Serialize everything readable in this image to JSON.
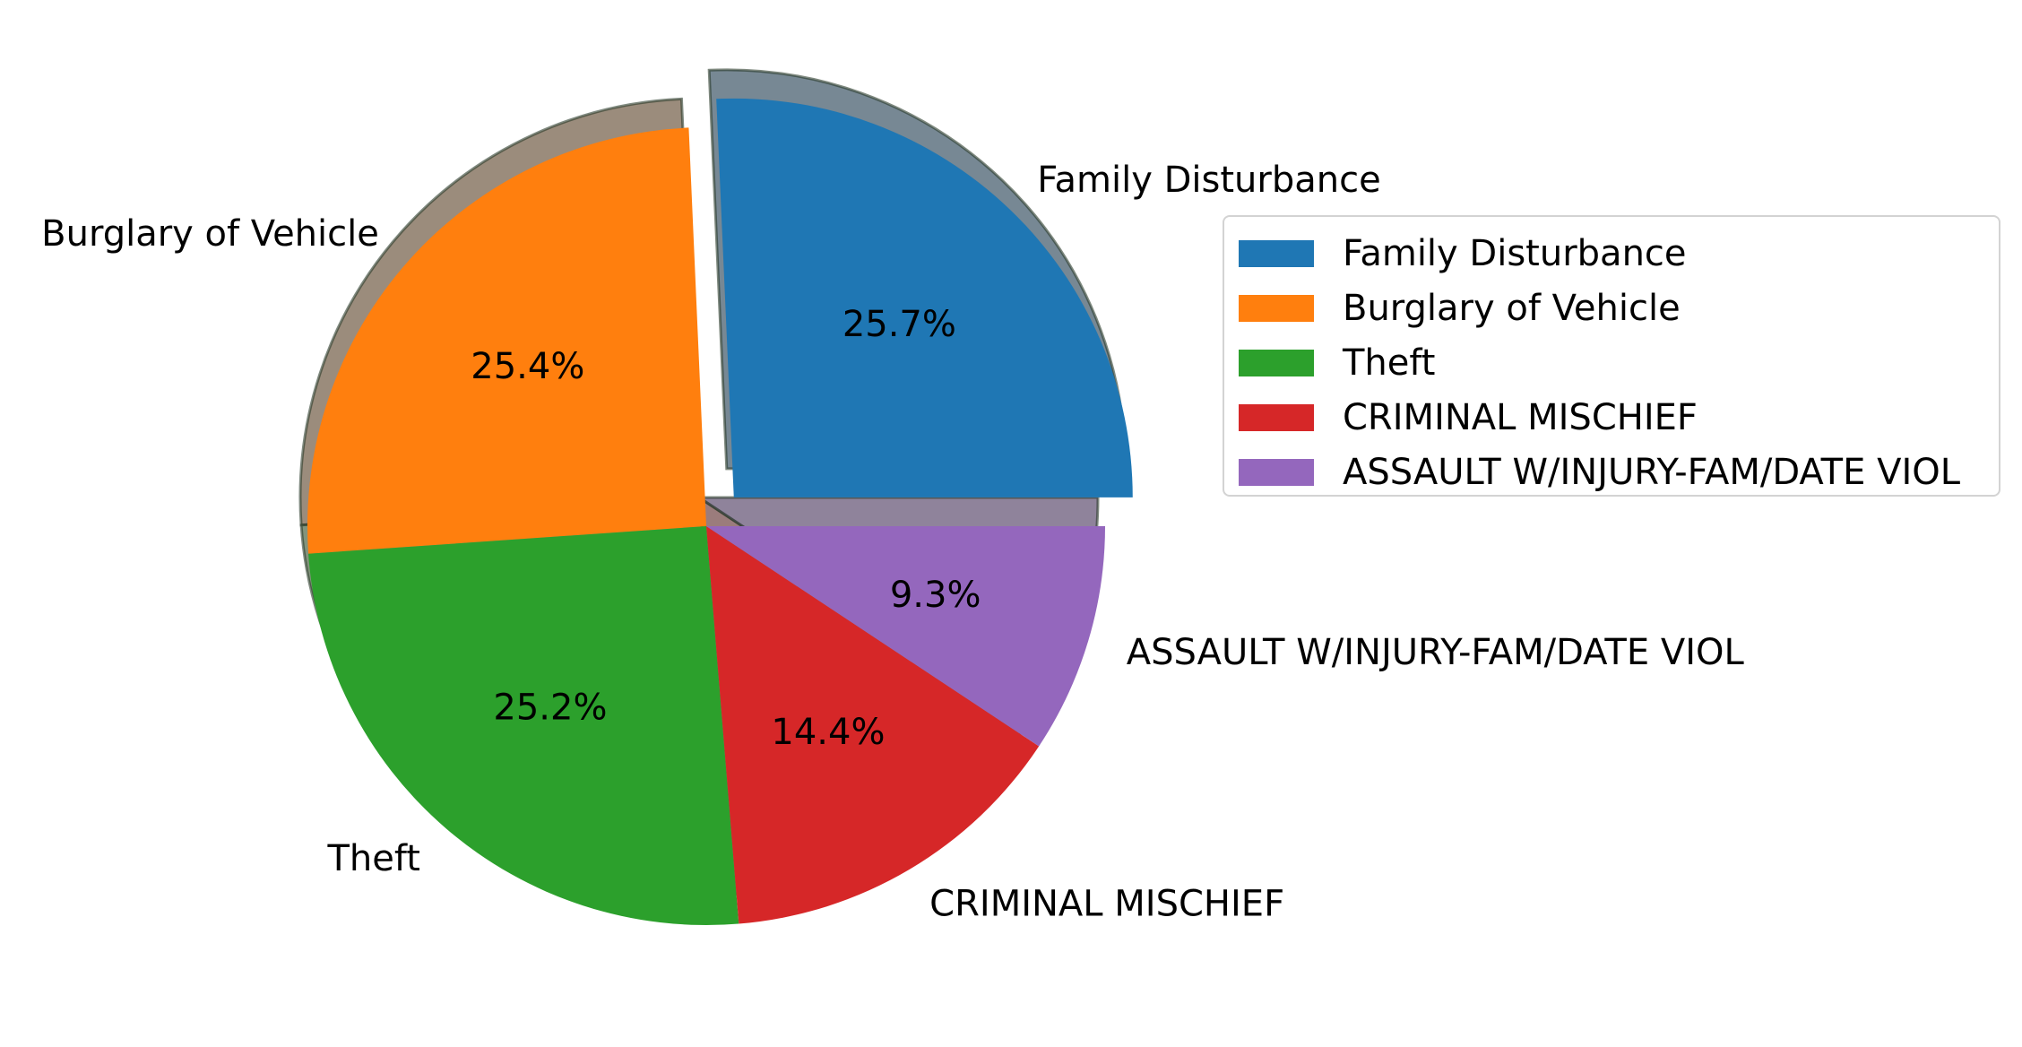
{
  "chart_data": {
    "type": "pie",
    "title": "",
    "categories": [
      "Family Disturbance",
      "Burglary of Vehicle",
      "Theft",
      "CRIMINAL MISCHIEF",
      "ASSAULT W/INJURY-FAM/DATE VIOL"
    ],
    "values": [
      25.7,
      25.4,
      25.2,
      14.4,
      9.3
    ],
    "percent_labels": [
      "25.7%",
      "25.4%",
      "25.2%",
      "14.4%",
      "9.3%"
    ],
    "colors": [
      "#1f77b4",
      "#ff7f0e",
      "#2ca02c",
      "#d62728",
      "#9467bd"
    ],
    "explode": [
      0.1,
      0,
      0,
      0,
      0
    ],
    "shadow": true,
    "start_angle": 0,
    "legend": {
      "placement": "right",
      "entries": [
        "Family Disturbance",
        "Burglary of Vehicle",
        "Theft",
        "CRIMINAL MISCHIEF",
        "ASSAULT W/INJURY-FAM/DATE VIOL"
      ]
    }
  }
}
